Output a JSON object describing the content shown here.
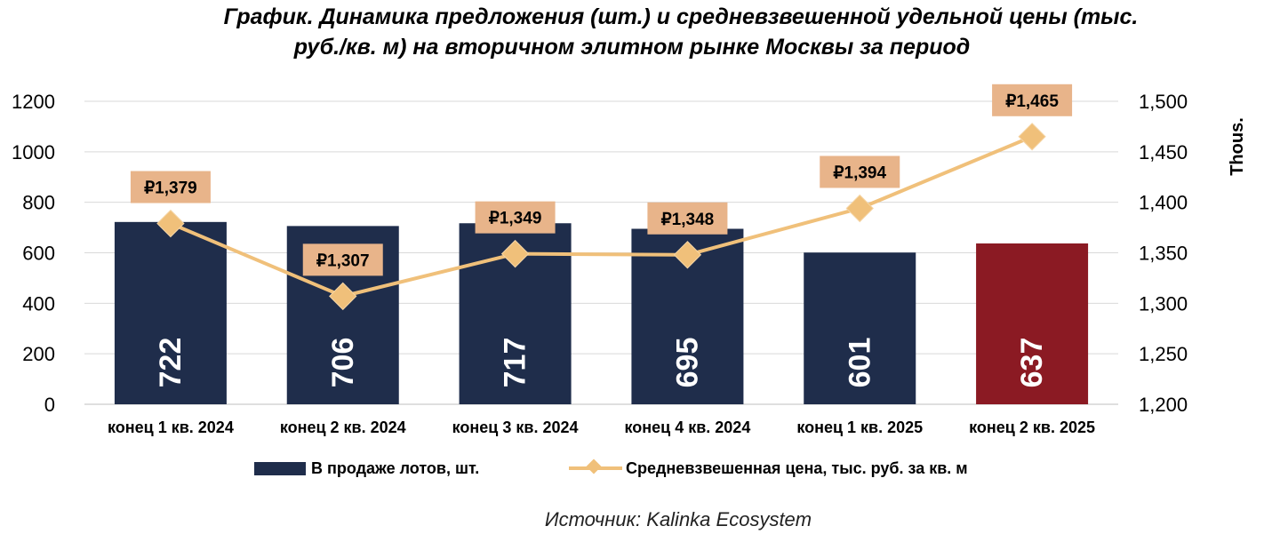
{
  "title": {
    "line1": "График. Динамика предложения (шт.) и средневзвешенной удельной цены (тыс.",
    "line2": "руб./кв. м) на вторичном элитном рынке Москвы за период"
  },
  "source": "Источник: Kalinka Ecosystem",
  "colors": {
    "bar_primary": "#1f2d4b",
    "bar_highlight": "#8b1a23",
    "line": "#f0c07a",
    "price_label_bg": "#e8b48a",
    "grid": "#d9d9d9"
  },
  "legend": {
    "bars_label": "В продаже лотов, шт.",
    "line_label": "Средневзвешенная цена, тыс. руб. за кв. м"
  },
  "chart_data": {
    "type": "bar",
    "categories": [
      "конец 1 кв. 2024",
      "конец 2 кв. 2024",
      "конец 3 кв. 2024",
      "конец 4 кв. 2024",
      "конец 1 кв. 2025",
      "конец 2 кв. 2025"
    ],
    "series": [
      {
        "name": "В продаже лотов, шт.",
        "type": "bar",
        "axis": "left",
        "values": [
          722,
          706,
          717,
          695,
          601,
          637
        ],
        "labels": [
          "722",
          "706",
          "717",
          "695",
          "601",
          "637"
        ],
        "highlight_index": 5
      },
      {
        "name": "Средневзвешенная цена, тыс. руб. за кв. м",
        "type": "line",
        "axis": "right",
        "values": [
          1379,
          1307,
          1349,
          1348,
          1394,
          1465
        ],
        "labels": [
          "₽1,379",
          "₽1,307",
          "₽1,349",
          "₽1,348",
          "₽1,394",
          "₽1,465"
        ],
        "marker": "diamond"
      }
    ],
    "left_axis": {
      "ylim": [
        0,
        1200
      ],
      "ticks": [
        0,
        200,
        400,
        600,
        800,
        1000,
        1200
      ],
      "tick_labels": [
        "0",
        "200",
        "400",
        "600",
        "800",
        "1000",
        "1200"
      ]
    },
    "right_axis": {
      "ylim": [
        1200,
        1500
      ],
      "ticks": [
        1200,
        1250,
        1300,
        1350,
        1400,
        1450,
        1500
      ],
      "tick_labels": [
        "1,200",
        "1,250",
        "1,300",
        "1,350",
        "1,400",
        "1,450",
        "1,500"
      ],
      "unit_label": "Thous."
    },
    "grid": true,
    "legend_position": "bottom"
  }
}
